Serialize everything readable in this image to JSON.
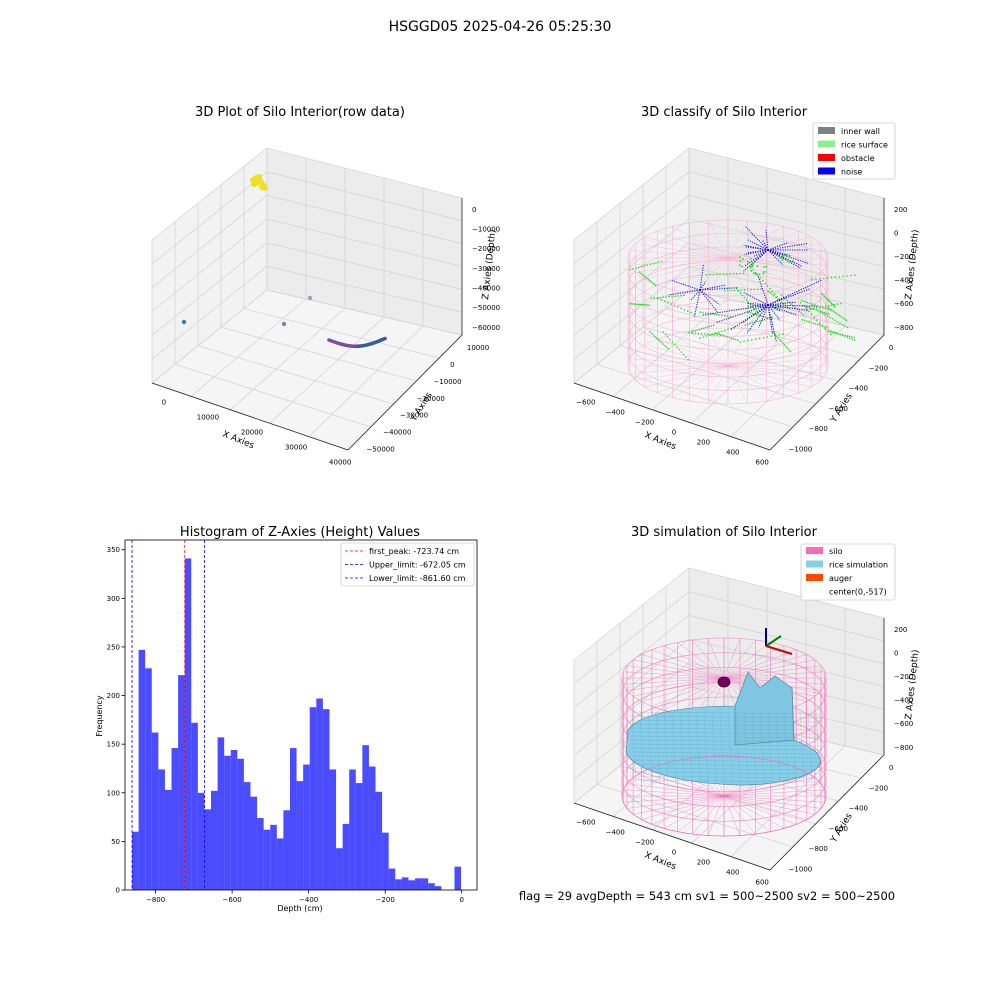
{
  "suptitle": "HSGGD05 2025-04-26 05:25:30",
  "footer": "flag = 29  avgDepth = 543 cm  sv1 = 500~2500  sv2 = 500~2500",
  "chart_data": [
    {
      "type": "scatter",
      "title": "3D Plot of Silo Interior(row data)",
      "xlabel": "X Axies",
      "ylabel": "Y Axies",
      "zlabel": "Z Axies (Depth)",
      "x_ticks": [
        "0",
        "10000",
        "20000",
        "30000",
        "40000"
      ],
      "y_ticks": [
        "10000",
        "0",
        "−10000",
        "−20000",
        "−30000",
        "−40000",
        "−50000"
      ],
      "z_ticks": [
        "0",
        "−10000",
        "−20000",
        "−30000",
        "−40000",
        "−50000",
        "−60000"
      ],
      "colors": {
        "cluster": "#f0e020",
        "arc": "#3b5b9a",
        "points": [
          "#3a7fa0",
          "#a070b0",
          "#a0a0b0"
        ]
      }
    },
    {
      "type": "scatter",
      "title": "3D classify of Silo Interior",
      "xlabel": "X Axies",
      "ylabel": "Y Axies",
      "zlabel": "Z Axies (Depth)",
      "x_ticks": [
        "−600",
        "−400",
        "−200",
        "0",
        "200",
        "400",
        "600"
      ],
      "y_ticks": [
        "0",
        "−200",
        "−400",
        "−600",
        "−800",
        "−1000"
      ],
      "z_ticks": [
        "200",
        "0",
        "−200",
        "−400",
        "−600",
        "−800"
      ],
      "legend": [
        {
          "label": "inner wall",
          "color": "#808080"
        },
        {
          "label": "rice surface",
          "color": "#90ee90"
        },
        {
          "label": "obstacle",
          "color": "#ff0000"
        },
        {
          "label": "noise",
          "color": "#0000ff"
        }
      ]
    },
    {
      "type": "bar",
      "title": "Histogram of Z-Axies (Height) Values",
      "xlabel": "Depth (cm)",
      "ylabel": "Frequency",
      "xlim": [
        -880,
        40
      ],
      "ylim": [
        0,
        360
      ],
      "x_ticks": [
        -800,
        -600,
        -400,
        -200,
        0
      ],
      "x_tick_labels": [
        "−800",
        "−600",
        "−400",
        "−200",
        "0"
      ],
      "y_ticks": [
        0,
        50,
        100,
        150,
        200,
        250,
        300,
        350
      ],
      "bin_start": -861.6,
      "bin_width": 17.2,
      "values": [
        60,
        247,
        228,
        162,
        124,
        103,
        146,
        221,
        341,
        172,
        100,
        83,
        102,
        157,
        138,
        144,
        135,
        111,
        96,
        74,
        62,
        67,
        53,
        82,
        146,
        112,
        129,
        188,
        197,
        186,
        124,
        43,
        68,
        124,
        110,
        149,
        127,
        101,
        59,
        22,
        11,
        13,
        10,
        12,
        12,
        7,
        4,
        0,
        0,
        24
      ],
      "bar_color": "#0000ff",
      "lines": [
        {
          "label": "first_peak: -723.74 cm",
          "x": -723.74,
          "color": "#ff0000"
        },
        {
          "label": "Upper_limit: -672.05 cm",
          "x": -672.05,
          "color": "#0000ff"
        },
        {
          "label": "Lower_limit: -861.60 cm",
          "x": -861.6,
          "color": "#0000ff"
        }
      ]
    },
    {
      "type": "area",
      "title": "3D simulation of Silo Interior",
      "xlabel": "X Axies",
      "ylabel": "Y Axies",
      "zlabel": "Z Axies (Depth)",
      "x_ticks": [
        "−600",
        "−400",
        "−200",
        "0",
        "200",
        "400",
        "600"
      ],
      "y_ticks": [
        "0",
        "−200",
        "−400",
        "−600",
        "−800",
        "−1000"
      ],
      "z_ticks": [
        "200",
        "0",
        "−200",
        "−400",
        "−600",
        "−800"
      ],
      "legend": [
        {
          "label": "silo",
          "color": "#ff69b4"
        },
        {
          "label": "rice simulation",
          "color": "#87ceeb"
        },
        {
          "label": "auger",
          "color": "#ff4500"
        },
        {
          "label": "center(0,-517)",
          "color": ""
        }
      ]
    }
  ]
}
